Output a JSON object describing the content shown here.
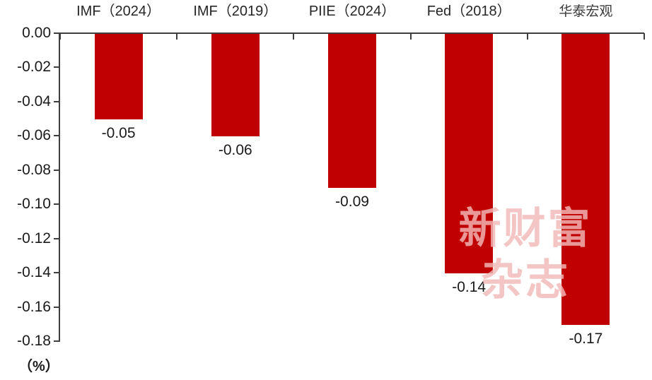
{
  "chart_data": {
    "type": "bar",
    "categories": [
      "IMF（2024）",
      "IMF（2019）",
      "PIIE（2024）",
      "Fed（2018）",
      "华泰宏观"
    ],
    "values": [
      -0.05,
      -0.06,
      -0.09,
      -0.14,
      -0.17
    ],
    "value_labels": [
      "-0.05",
      "-0.06",
      "-0.09",
      "-0.14",
      "-0.17"
    ],
    "title": "",
    "xlabel": "",
    "ylabel": "（%）",
    "ylim": [
      -0.18,
      0
    ],
    "y_ticks": [
      0,
      -0.02,
      -0.04,
      -0.06,
      -0.08,
      -0.1,
      -0.12,
      -0.14,
      -0.16,
      -0.18
    ],
    "y_tick_labels": [
      "0.00",
      "-0.02",
      "-0.04",
      "-0.06",
      "-0.08",
      "-0.10",
      "-0.12",
      "-0.14",
      "-0.16",
      "-0.18"
    ],
    "bar_color": "#C00000",
    "axis_color": "#3F3F3F",
    "grid": false,
    "legend": "none",
    "value_label_position": "below-bar"
  },
  "watermark": {
    "line1": "新财富",
    "line2": "杂志",
    "color": "#F0B8B8"
  }
}
